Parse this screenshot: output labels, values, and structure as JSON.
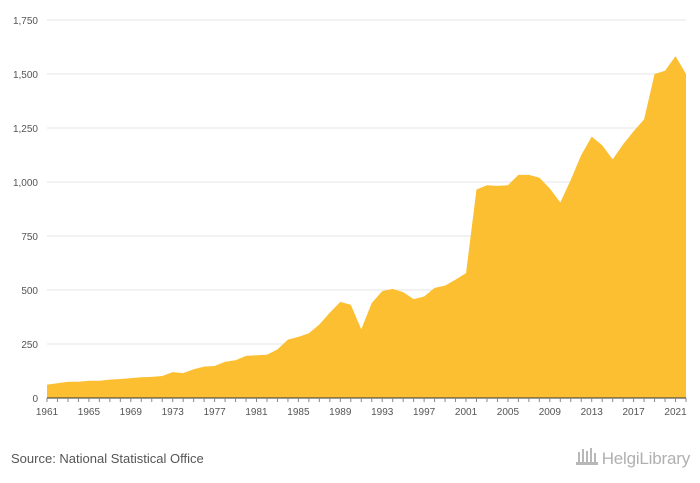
{
  "chart_data": {
    "type": "area",
    "title": "",
    "xlabel": "",
    "ylabel": "",
    "x": [
      1961,
      1962,
      1963,
      1964,
      1965,
      1966,
      1967,
      1968,
      1969,
      1970,
      1971,
      1972,
      1973,
      1974,
      1975,
      1976,
      1977,
      1978,
      1979,
      1980,
      1981,
      1982,
      1983,
      1984,
      1985,
      1986,
      1987,
      1988,
      1989,
      1990,
      1991,
      1992,
      1993,
      1994,
      1995,
      1996,
      1997,
      1998,
      1999,
      2000,
      2001,
      2002,
      2003,
      2004,
      2005,
      2006,
      2007,
      2008,
      2009,
      2010,
      2011,
      2012,
      2013,
      2014,
      2015,
      2016,
      2017,
      2018,
      2019,
      2020,
      2021,
      2022
    ],
    "series": [
      {
        "values": [
          62,
          68,
          75,
          75,
          80,
          80,
          85,
          88,
          92,
          96,
          98,
          102,
          120,
          115,
          133,
          145,
          148,
          168,
          175,
          195,
          198,
          200,
          225,
          270,
          283,
          300,
          340,
          395,
          445,
          432,
          318,
          440,
          495,
          505,
          490,
          458,
          470,
          510,
          520,
          548,
          578,
          965,
          985,
          982,
          985,
          1033,
          1033,
          1020,
          970,
          905,
          1010,
          1125,
          1210,
          1170,
          1105,
          1175,
          1235,
          1290,
          1500,
          1515,
          1583,
          1500
        ]
      }
    ],
    "x_tick_labels": [
      "1961",
      "1965",
      "1969",
      "1973",
      "1977",
      "1981",
      "1985",
      "1989",
      "1993",
      "1997",
      "2001",
      "2005",
      "2009",
      "2013",
      "2017",
      "2021"
    ],
    "y_tick_labels": [
      "0",
      "250",
      "500",
      "750",
      "1,000",
      "1,250",
      "1,500",
      "1,750"
    ],
    "y_ticks": [
      0,
      250,
      500,
      750,
      1000,
      1250,
      1500,
      1750
    ],
    "ylim": [
      0,
      1750
    ],
    "grid": true,
    "colors": {
      "area": "#FBBF31",
      "grid": "#e6e6e6",
      "axis": "#333333"
    }
  },
  "footer": {
    "source": "Source: National Statistical Office",
    "logo_text": "HelgiLibrary",
    "logo_icon": "library-building-icon"
  }
}
